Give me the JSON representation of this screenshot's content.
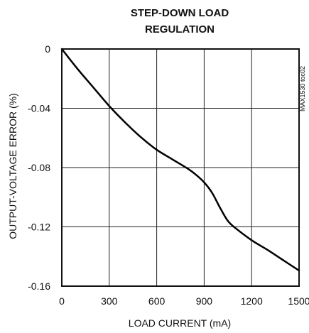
{
  "chart_data": {
    "type": "line",
    "title_lines": [
      "STEP-DOWN LOAD",
      "REGULATION"
    ],
    "xlabel": "LOAD CURRENT (mA)",
    "ylabel": "OUTPUT-VOLTAGE ERROR (%)",
    "xlim": [
      0,
      1500
    ],
    "ylim": [
      -0.16,
      0
    ],
    "x_ticks": [
      0,
      300,
      600,
      900,
      1200,
      1500
    ],
    "x_tick_labels": [
      "0",
      "300",
      "600",
      "900",
      "1200",
      "1500"
    ],
    "y_ticks": [
      0,
      -0.04,
      -0.08,
      -0.12,
      -0.16
    ],
    "y_tick_labels": [
      "0",
      "-0.04",
      "-0.08",
      "-0.12",
      "-0.16"
    ],
    "grid": true,
    "figure_id": "MAX1530 toc02",
    "series": [
      {
        "x": [
          0,
          100,
          200,
          300,
          400,
          500,
          600,
          700,
          800,
          850,
          900,
          950,
          1000,
          1050,
          1100,
          1200,
          1300,
          1400,
          1500
        ],
        "y": [
          0,
          -0.0135,
          -0.026,
          -0.0385,
          -0.0495,
          -0.0595,
          -0.068,
          -0.0745,
          -0.081,
          -0.085,
          -0.09,
          -0.097,
          -0.107,
          -0.116,
          -0.121,
          -0.129,
          -0.1355,
          -0.1425,
          -0.1495
        ]
      }
    ]
  }
}
